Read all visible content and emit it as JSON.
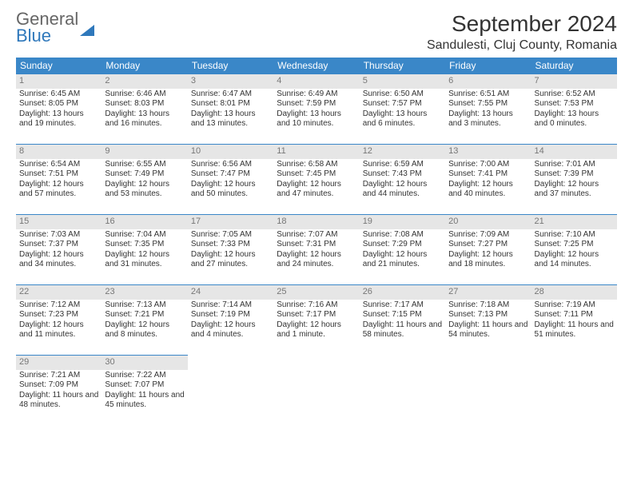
{
  "logo": {
    "line1": "General",
    "line2": "Blue"
  },
  "title": "September 2024",
  "location": "Sandulesti, Cluj County, Romania",
  "colors": {
    "header_bg": "#3a87c8",
    "header_text": "#ffffff",
    "border": "#3a87c8"
  },
  "weekdays": [
    "Sunday",
    "Monday",
    "Tuesday",
    "Wednesday",
    "Thursday",
    "Friday",
    "Saturday"
  ],
  "weeks": [
    [
      {
        "n": "1",
        "sr": "6:45 AM",
        "ss": "8:05 PM",
        "dl": "13 hours and 19 minutes."
      },
      {
        "n": "2",
        "sr": "6:46 AM",
        "ss": "8:03 PM",
        "dl": "13 hours and 16 minutes."
      },
      {
        "n": "3",
        "sr": "6:47 AM",
        "ss": "8:01 PM",
        "dl": "13 hours and 13 minutes."
      },
      {
        "n": "4",
        "sr": "6:49 AM",
        "ss": "7:59 PM",
        "dl": "13 hours and 10 minutes."
      },
      {
        "n": "5",
        "sr": "6:50 AM",
        "ss": "7:57 PM",
        "dl": "13 hours and 6 minutes."
      },
      {
        "n": "6",
        "sr": "6:51 AM",
        "ss": "7:55 PM",
        "dl": "13 hours and 3 minutes."
      },
      {
        "n": "7",
        "sr": "6:52 AM",
        "ss": "7:53 PM",
        "dl": "13 hours and 0 minutes."
      }
    ],
    [
      {
        "n": "8",
        "sr": "6:54 AM",
        "ss": "7:51 PM",
        "dl": "12 hours and 57 minutes."
      },
      {
        "n": "9",
        "sr": "6:55 AM",
        "ss": "7:49 PM",
        "dl": "12 hours and 53 minutes."
      },
      {
        "n": "10",
        "sr": "6:56 AM",
        "ss": "7:47 PM",
        "dl": "12 hours and 50 minutes."
      },
      {
        "n": "11",
        "sr": "6:58 AM",
        "ss": "7:45 PM",
        "dl": "12 hours and 47 minutes."
      },
      {
        "n": "12",
        "sr": "6:59 AM",
        "ss": "7:43 PM",
        "dl": "12 hours and 44 minutes."
      },
      {
        "n": "13",
        "sr": "7:00 AM",
        "ss": "7:41 PM",
        "dl": "12 hours and 40 minutes."
      },
      {
        "n": "14",
        "sr": "7:01 AM",
        "ss": "7:39 PM",
        "dl": "12 hours and 37 minutes."
      }
    ],
    [
      {
        "n": "15",
        "sr": "7:03 AM",
        "ss": "7:37 PM",
        "dl": "12 hours and 34 minutes."
      },
      {
        "n": "16",
        "sr": "7:04 AM",
        "ss": "7:35 PM",
        "dl": "12 hours and 31 minutes."
      },
      {
        "n": "17",
        "sr": "7:05 AM",
        "ss": "7:33 PM",
        "dl": "12 hours and 27 minutes."
      },
      {
        "n": "18",
        "sr": "7:07 AM",
        "ss": "7:31 PM",
        "dl": "12 hours and 24 minutes."
      },
      {
        "n": "19",
        "sr": "7:08 AM",
        "ss": "7:29 PM",
        "dl": "12 hours and 21 minutes."
      },
      {
        "n": "20",
        "sr": "7:09 AM",
        "ss": "7:27 PM",
        "dl": "12 hours and 18 minutes."
      },
      {
        "n": "21",
        "sr": "7:10 AM",
        "ss": "7:25 PM",
        "dl": "12 hours and 14 minutes."
      }
    ],
    [
      {
        "n": "22",
        "sr": "7:12 AM",
        "ss": "7:23 PM",
        "dl": "12 hours and 11 minutes."
      },
      {
        "n": "23",
        "sr": "7:13 AM",
        "ss": "7:21 PM",
        "dl": "12 hours and 8 minutes."
      },
      {
        "n": "24",
        "sr": "7:14 AM",
        "ss": "7:19 PM",
        "dl": "12 hours and 4 minutes."
      },
      {
        "n": "25",
        "sr": "7:16 AM",
        "ss": "7:17 PM",
        "dl": "12 hours and 1 minute."
      },
      {
        "n": "26",
        "sr": "7:17 AM",
        "ss": "7:15 PM",
        "dl": "11 hours and 58 minutes."
      },
      {
        "n": "27",
        "sr": "7:18 AM",
        "ss": "7:13 PM",
        "dl": "11 hours and 54 minutes."
      },
      {
        "n": "28",
        "sr": "7:19 AM",
        "ss": "7:11 PM",
        "dl": "11 hours and 51 minutes."
      }
    ],
    [
      {
        "n": "29",
        "sr": "7:21 AM",
        "ss": "7:09 PM",
        "dl": "11 hours and 48 minutes."
      },
      {
        "n": "30",
        "sr": "7:22 AM",
        "ss": "7:07 PM",
        "dl": "11 hours and 45 minutes."
      },
      null,
      null,
      null,
      null,
      null
    ]
  ],
  "labels": {
    "sunrise": "Sunrise:",
    "sunset": "Sunset:",
    "daylight": "Daylight:"
  }
}
